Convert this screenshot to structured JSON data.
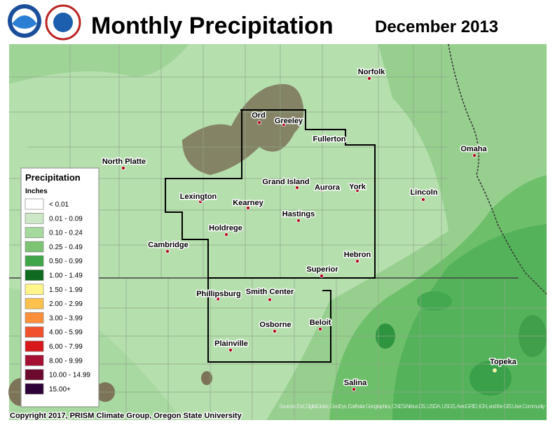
{
  "header": {
    "title": "Monthly Precipitation",
    "date": "December 2013"
  },
  "legend": {
    "title": "Precipitation",
    "units": "Inches",
    "entries": [
      {
        "label": "< 0.01",
        "color": "#ffffff"
      },
      {
        "label": "0.01 - 0.09",
        "color": "#cde8c6"
      },
      {
        "label": "0.10 - 0.24",
        "color": "#a6d99e"
      },
      {
        "label": "0.25 - 0.49",
        "color": "#7cc474"
      },
      {
        "label": "0.50 - 0.99",
        "color": "#3fa64a"
      },
      {
        "label": "1.00 - 1.49",
        "color": "#0e6b1f"
      },
      {
        "label": "1.50 - 1.99",
        "color": "#fff58a"
      },
      {
        "label": "2.00 - 2.99",
        "color": "#fdc14e"
      },
      {
        "label": "3.00 - 3.99",
        "color": "#fb8f3c"
      },
      {
        "label": "4.00 - 5.99",
        "color": "#f1512d"
      },
      {
        "label": "6.00 - 7.99",
        "color": "#d7191c"
      },
      {
        "label": "8.00 - 9.99",
        "color": "#a50f32"
      },
      {
        "label": "10.00 - 14.99",
        "color": "#6b0a2e"
      },
      {
        "label": "15.00+",
        "color": "#2d0238"
      }
    ]
  },
  "cities": [
    "Norfolk",
    "Ord",
    "Greeley",
    "Fullerton",
    "North Platte",
    "Omaha",
    "Grand Island",
    "Aurora",
    "York",
    "Lincoln",
    "Lexington",
    "Kearney",
    "Hastings",
    "Holdrege",
    "Cambridge",
    "Hebron",
    "Superior",
    "Phillipsburg",
    "Smith Center",
    "Osborne",
    "Beloit",
    "Plainville",
    "Salina",
    "Topeka"
  ],
  "footer": {
    "copyright": "Copyright 2017, PRISM Climate Group, Oregon State University",
    "attribution": "Sources: Esri, DigitalGlobe, GeoEye, Earthstar Geographics, CNES/Airbus DS, USDA, USGS, AeroGRID, IGN, and the GIS User Community"
  }
}
